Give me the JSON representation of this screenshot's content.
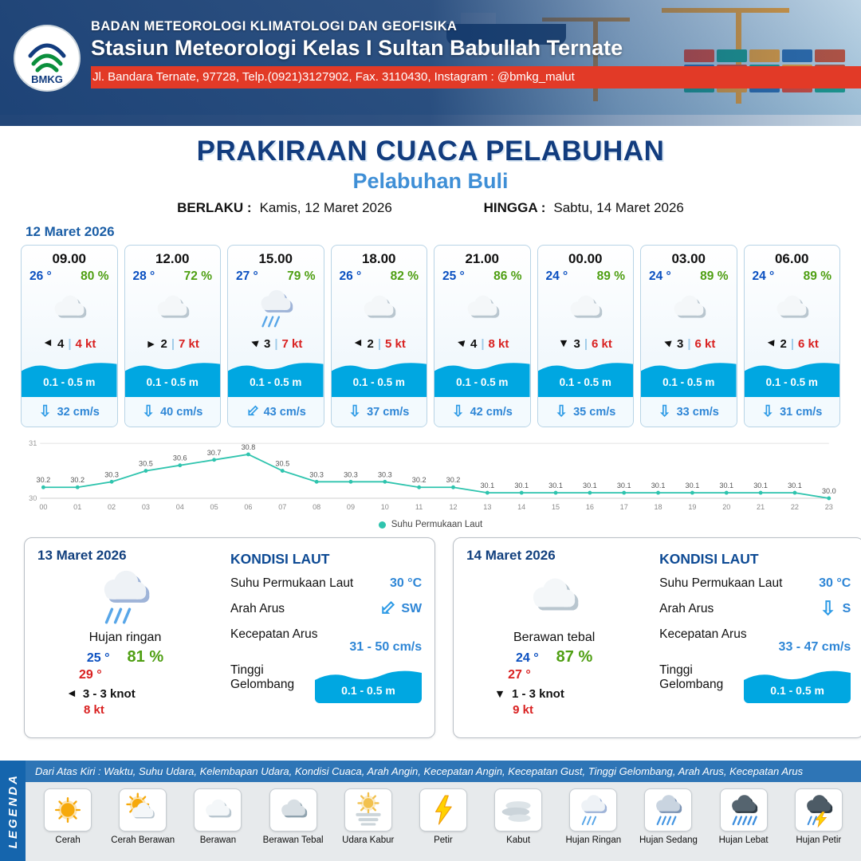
{
  "header": {
    "org": "BADAN METEOROLOGI KLIMATOLOGI DAN GEOFISIKA",
    "station": "Stasiun Meteorologi Kelas I Sultan Babullah Ternate",
    "address": "Jl. Bandara Ternate, 97728, Telp.(0921)3127902, Fax. 3110430, Instagram : @bmkg_malut",
    "logo_text": "BMKG"
  },
  "title": {
    "main": "PRAKIRAAN CUACA PELABUHAN",
    "port": "Pelabuhan Buli",
    "berlaku_label": "BERLAKU :",
    "berlaku_value": "Kamis, 12 Maret 2026",
    "hingga_label": "HINGGA :",
    "hingga_value": "Sabtu, 14 Maret 2026"
  },
  "forecast": {
    "date": "12 Maret 2026",
    "cards": [
      {
        "time": "09.00",
        "temp": "26 °",
        "humidity": "80 %",
        "icon": "berawan",
        "wind_num": "4",
        "wind_rot": 180,
        "wind_kt": "4 kt",
        "wave": "0.1 - 0.5 m",
        "current_rot": 0,
        "current": "32 cm/s"
      },
      {
        "time": "12.00",
        "temp": "28 °",
        "humidity": "72 %",
        "icon": "berawan",
        "wind_num": "2",
        "wind_rot": 0,
        "wind_kt": "7 kt",
        "wave": "0.1 - 0.5 m",
        "current_rot": 0,
        "current": "40 cm/s"
      },
      {
        "time": "15.00",
        "temp": "27 °",
        "humidity": "79 %",
        "icon": "hujan-ringan",
        "wind_num": "3",
        "wind_rot": 200,
        "wind_kt": "7 kt",
        "wave": "0.1 - 0.5 m",
        "current_rot": 45,
        "current": "43 cm/s"
      },
      {
        "time": "18.00",
        "temp": "26 °",
        "humidity": "82 %",
        "icon": "berawan",
        "wind_num": "2",
        "wind_rot": 180,
        "wind_kt": "5 kt",
        "wave": "0.1 - 0.5 m",
        "current_rot": 0,
        "current": "37 cm/s"
      },
      {
        "time": "21.00",
        "temp": "25 °",
        "humidity": "86 %",
        "icon": "berawan",
        "wind_num": "4",
        "wind_rot": 195,
        "wind_kt": "8 kt",
        "wave": "0.1 - 0.5 m",
        "current_rot": 0,
        "current": "42 cm/s"
      },
      {
        "time": "00.00",
        "temp": "24 °",
        "humidity": "89 %",
        "icon": "berawan",
        "wind_num": "3",
        "wind_rot": 90,
        "wind_kt": "6 kt",
        "wave": "0.1 - 0.5 m",
        "current_rot": 0,
        "current": "35 cm/s"
      },
      {
        "time": "03.00",
        "temp": "24 °",
        "humidity": "89 %",
        "icon": "berawan",
        "wind_num": "3",
        "wind_rot": 200,
        "wind_kt": "6 kt",
        "wave": "0.1 - 0.5 m",
        "current_rot": 0,
        "current": "33 cm/s"
      },
      {
        "time": "06.00",
        "temp": "24 °",
        "humidity": "89 %",
        "icon": "berawan",
        "wind_num": "2",
        "wind_rot": 185,
        "wind_kt": "6 kt",
        "wave": "0.1 - 0.5 m",
        "current_rot": 0,
        "current": "31 cm/s"
      }
    ]
  },
  "chart_data": {
    "type": "line",
    "title": "",
    "series_label": "Suhu Permukaan Laut",
    "x": [
      "00",
      "01",
      "02",
      "03",
      "04",
      "05",
      "06",
      "07",
      "08",
      "09",
      "10",
      "11",
      "12",
      "13",
      "14",
      "15",
      "16",
      "17",
      "18",
      "19",
      "20",
      "21",
      "22",
      "23"
    ],
    "values": [
      30.2,
      30.2,
      30.3,
      30.5,
      30.6,
      30.7,
      30.8,
      30.5,
      30.3,
      30.3,
      30.3,
      30.2,
      30.2,
      30.1,
      30.1,
      30.1,
      30.1,
      30.1,
      30.1,
      30.1,
      30.1,
      30.1,
      30.1,
      30.0
    ],
    "ylim": [
      30,
      31
    ],
    "line_color": "#2fc4ae",
    "grid": true,
    "legend_position": "bottom"
  },
  "day2": {
    "date": "13 Maret 2026",
    "icon": "hujan-ringan",
    "condition": "Hujan ringan",
    "temp": "25 °",
    "humidity": "81 %",
    "temp2": "29 °",
    "wind_rot": 180,
    "wind": "3  - 3 knot",
    "gust": "8 kt",
    "sea": {
      "title": "KONDISI LAUT",
      "sst_label": "Suhu Permukaan Laut",
      "sst_value": "30 °C",
      "dir_label": "Arah Arus",
      "dir_value": "SW",
      "dir_rot": 45,
      "speed_label": "Kecepatan Arus",
      "speed_value": "31  - 50 cm/s",
      "wave_label": "Tinggi Gelombang",
      "wave_value": "0.1 - 0.5 m"
    }
  },
  "day3": {
    "date": "14 Maret 2026",
    "icon": "berawan",
    "condition": "Berawan tebal",
    "temp": "24 °",
    "humidity": "87 %",
    "temp2": "27 °",
    "wind_rot": 90,
    "wind": "1  - 3 knot",
    "gust": "9 kt",
    "sea": {
      "title": "KONDISI LAUT",
      "sst_label": "Suhu Permukaan Laut",
      "sst_value": "30 °C",
      "dir_label": "Arah Arus",
      "dir_value": "S",
      "dir_rot": 0,
      "speed_label": "Kecepatan Arus",
      "speed_value": "33  - 47 cm/s",
      "wave_label": "Tinggi Gelombang",
      "wave_value": "0.1 - 0.5 m"
    }
  },
  "legend": {
    "vertical_label": "LEGENDA",
    "note": "Dari Atas Kiri : Waktu, Suhu Udara, Kelembapan Udara, Kondisi Cuaca, Arah Angin, Kecepatan Angin, Kecepatan Gust, Tinggi Gelombang, Arah Arus, Kecepatan Arus",
    "items": [
      {
        "label": "Cerah",
        "icon": "cerah"
      },
      {
        "label": "Cerah Berawan",
        "icon": "cerah-berawan"
      },
      {
        "label": "Berawan",
        "icon": "berawan"
      },
      {
        "label": "Berawan Tebal",
        "icon": "berawan-tebal"
      },
      {
        "label": "Udara Kabur",
        "icon": "udara-kabur"
      },
      {
        "label": "Petir",
        "icon": "petir"
      },
      {
        "label": "Kabut",
        "icon": "kabut"
      },
      {
        "label": "Hujan Ringan",
        "icon": "hujan-ringan"
      },
      {
        "label": "Hujan Sedang",
        "icon": "hujan-sedang"
      },
      {
        "label": "Hujan Lebat",
        "icon": "hujan-lebat"
      },
      {
        "label": "Hujan Petir",
        "icon": "hujan-petir"
      }
    ]
  }
}
